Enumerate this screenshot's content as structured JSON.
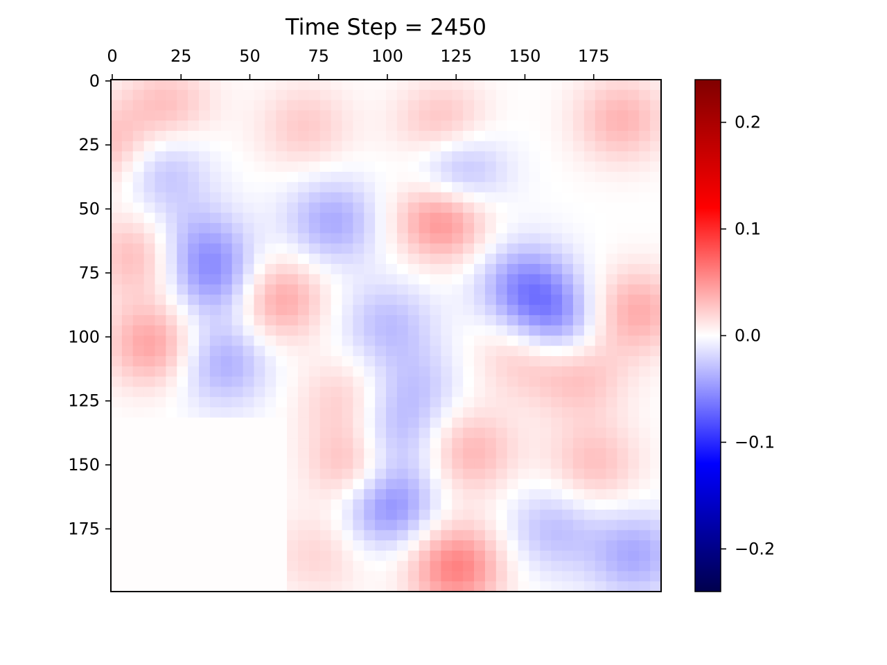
{
  "chart_data": {
    "type": "heatmap",
    "title": "Time Step = 2450",
    "xlabel": "",
    "ylabel": "",
    "grid": false,
    "colormap": "seismic",
    "x_axis": {
      "position": "top",
      "range": [
        -0.5,
        199.5
      ],
      "ticks": [
        0,
        25,
        50,
        75,
        100,
        125,
        150,
        175
      ]
    },
    "y_axis": {
      "inverted": true,
      "range": [
        -0.5,
        199.5
      ],
      "ticks": [
        0,
        25,
        50,
        75,
        100,
        125,
        150,
        175
      ]
    },
    "grid_shape": [
      200,
      200
    ],
    "colorbar": {
      "position": "right",
      "range": [
        -0.24,
        0.24
      ],
      "ticks": [
        0.2,
        0.1,
        0.0,
        -0.1,
        -0.2
      ],
      "tick_labels": [
        "0.2",
        "0.1",
        "0.0",
        "−0.1",
        "−0.2"
      ],
      "colors": [
        "#00004d",
        "#0000ff",
        "#ffffff",
        "#ff0000",
        "#800000"
      ]
    },
    "field_features": [
      {
        "x": 20,
        "y": 10,
        "value": 0.03
      },
      {
        "x": 1,
        "y": 27,
        "value": 0.035
      },
      {
        "x": 17,
        "y": 34,
        "value": -0.035
      },
      {
        "x": 10,
        "y": 68,
        "value": 0.035
      },
      {
        "x": 38,
        "y": 77,
        "value": -0.045
      },
      {
        "x": 30,
        "y": 63,
        "value": -0.03
      },
      {
        "x": 15,
        "y": 103,
        "value": 0.045
      },
      {
        "x": 40,
        "y": 110,
        "value": -0.04
      },
      {
        "x": 70,
        "y": 18,
        "value": 0.025
      },
      {
        "x": 120,
        "y": 18,
        "value": 0.035
      },
      {
        "x": 185,
        "y": 15,
        "value": 0.035
      },
      {
        "x": 125,
        "y": 36,
        "value": -0.05
      },
      {
        "x": 80,
        "y": 55,
        "value": -0.04
      },
      {
        "x": 120,
        "y": 53,
        "value": 0.06
      },
      {
        "x": 60,
        "y": 85,
        "value": 0.045
      },
      {
        "x": 100,
        "y": 95,
        "value": -0.03
      },
      {
        "x": 150,
        "y": 80,
        "value": -0.05
      },
      {
        "x": 160,
        "y": 95,
        "value": -0.055
      },
      {
        "x": 190,
        "y": 90,
        "value": 0.04
      },
      {
        "x": 150,
        "y": 105,
        "value": 0.035
      },
      {
        "x": 170,
        "y": 115,
        "value": 0.03
      },
      {
        "x": 85,
        "y": 125,
        "value": 0.025
      },
      {
        "x": 100,
        "y": 140,
        "value": -0.04
      },
      {
        "x": 90,
        "y": 150,
        "value": 0.05
      },
      {
        "x": 130,
        "y": 145,
        "value": 0.035
      },
      {
        "x": 100,
        "y": 165,
        "value": -0.06
      },
      {
        "x": 125,
        "y": 190,
        "value": 0.06
      },
      {
        "x": 175,
        "y": 150,
        "value": 0.03
      },
      {
        "x": 190,
        "y": 185,
        "value": -0.04
      },
      {
        "x": 160,
        "y": 175,
        "value": -0.03
      },
      {
        "x": 75,
        "y": 185,
        "value": 0.02
      },
      {
        "x": 110,
        "y": 120,
        "value": -0.025
      }
    ],
    "flat_region": {
      "x_range": [
        0,
        62
      ],
      "y_range": [
        131,
        199
      ],
      "value": 0.001
    }
  }
}
